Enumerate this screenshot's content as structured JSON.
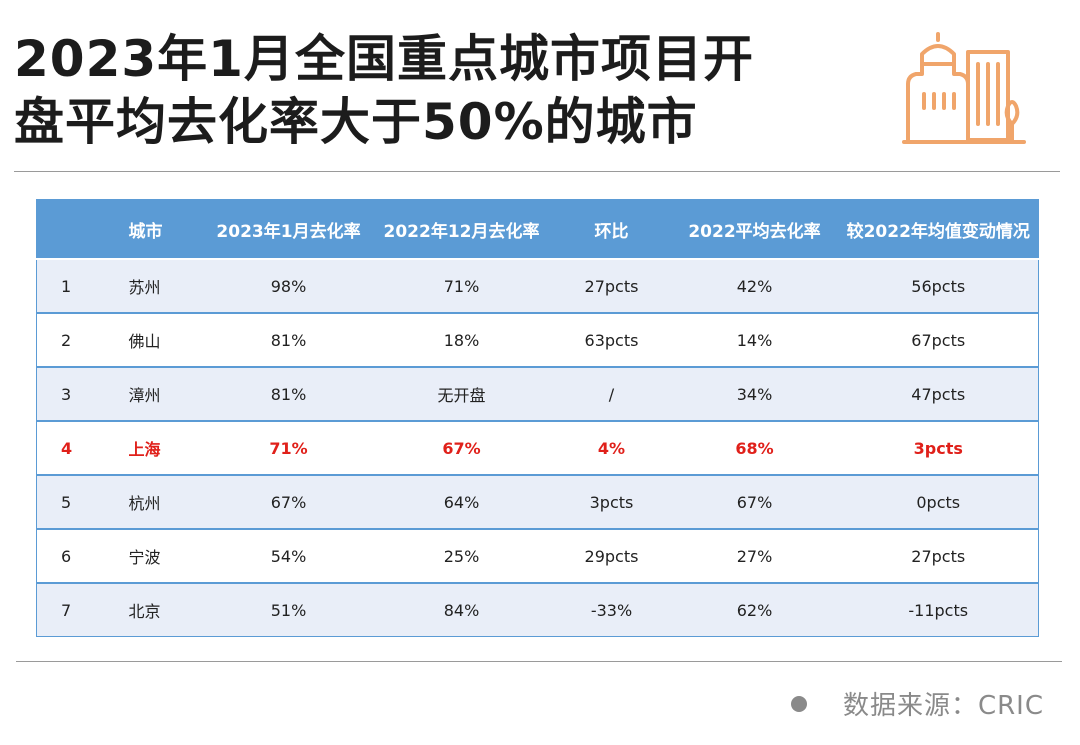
{
  "title": {
    "line1": "2023年1月全国重点城市项目开",
    "line2": "盘平均去化率大于50%的城市"
  },
  "logo": {
    "icon": "city-buildings-icon",
    "color": "#f0a56b"
  },
  "table": {
    "headers": [
      "",
      "城市",
      "2023年1月去化率",
      "2022年12月去化率",
      "环比",
      "2022平均去化率",
      "较2022年均值变动情况"
    ],
    "rows": [
      [
        "1",
        "苏州",
        "98%",
        "71%",
        "27pcts",
        "42%",
        "56pcts"
      ],
      [
        "2",
        "佛山",
        "81%",
        "18%",
        "63pcts",
        "14%",
        "67pcts"
      ],
      [
        "3",
        "漳州",
        "81%",
        "无开盘",
        "/",
        "34%",
        "47pcts"
      ],
      [
        "4",
        "上海",
        "71%",
        "67%",
        "4%",
        "68%",
        "3pcts"
      ],
      [
        "5",
        "杭州",
        "67%",
        "64%",
        "3pcts",
        "67%",
        "0pcts"
      ],
      [
        "6",
        "宁波",
        "54%",
        "25%",
        "29pcts",
        "27%",
        "27pcts"
      ],
      [
        "7",
        "北京",
        "51%",
        "84%",
        "-33%",
        "62%",
        "-11pcts"
      ]
    ],
    "highlight_row": 3,
    "header_color": "#5b9bd5",
    "highlight_color": "#e0201a"
  },
  "source": {
    "text": "数据来源：CRIC"
  }
}
